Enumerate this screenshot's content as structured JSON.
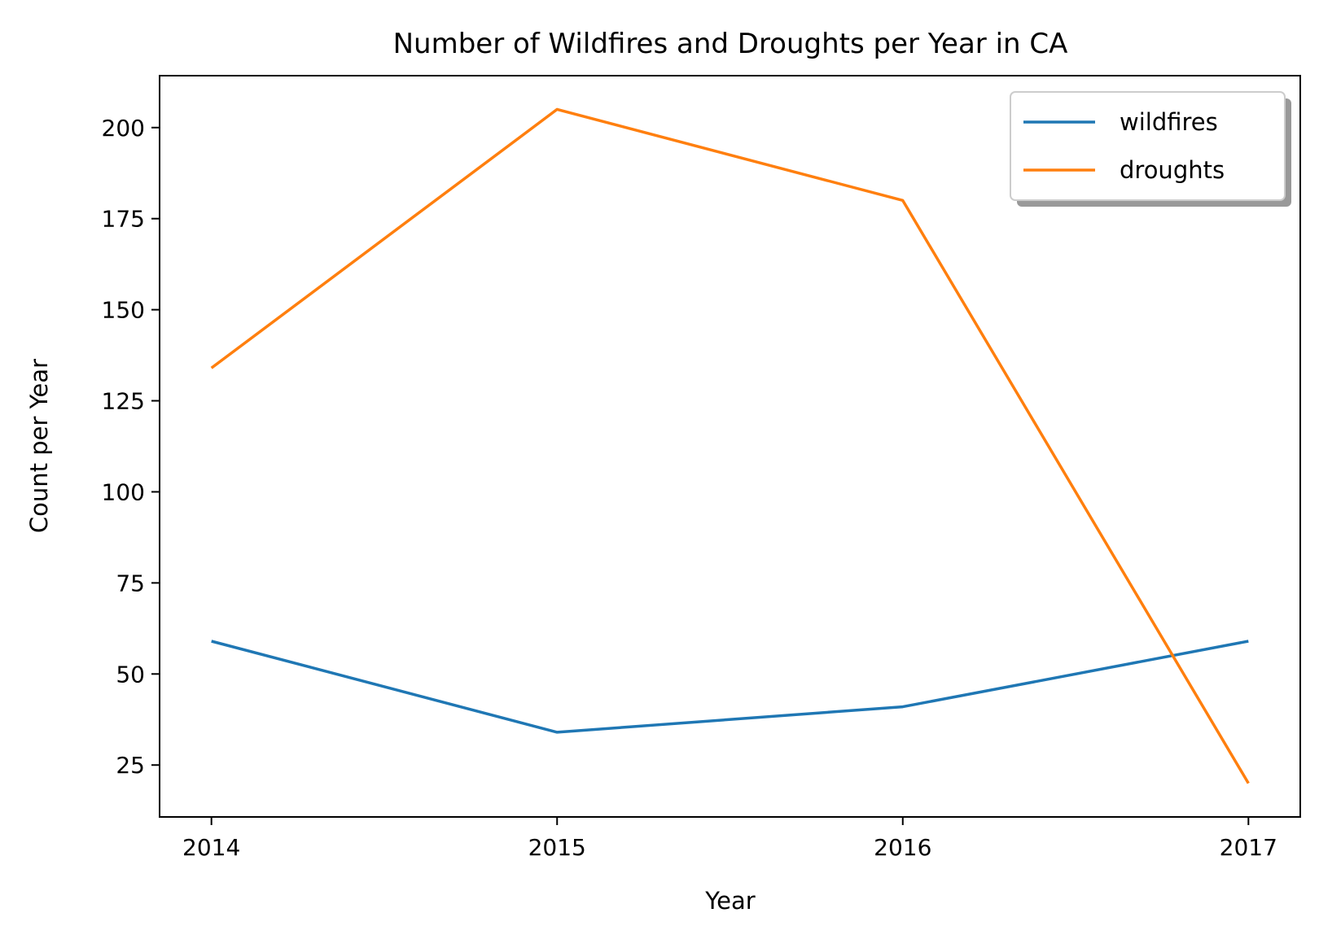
{
  "chart_data": {
    "type": "line",
    "title": "Number of Wildfires and Droughts per Year in CA",
    "xlabel": "Year",
    "ylabel": "Count per Year",
    "x": [
      2014,
      2015,
      2016,
      2017
    ],
    "xticks": [
      "2014",
      "2015",
      "2016",
      "2017"
    ],
    "xlim": [
      2013.85,
      2017.15
    ],
    "yticks": [
      25,
      50,
      75,
      100,
      125,
      150,
      175,
      200
    ],
    "ylim": [
      10.75,
      214.25
    ],
    "grid": false,
    "legend_position": "top-right",
    "series": [
      {
        "name": "wildfires",
        "color": "#1f77b4",
        "values": [
          59,
          34,
          41,
          59
        ]
      },
      {
        "name": "droughts",
        "color": "#ff7f0e",
        "values": [
          134,
          205,
          180,
          20
        ]
      }
    ]
  }
}
